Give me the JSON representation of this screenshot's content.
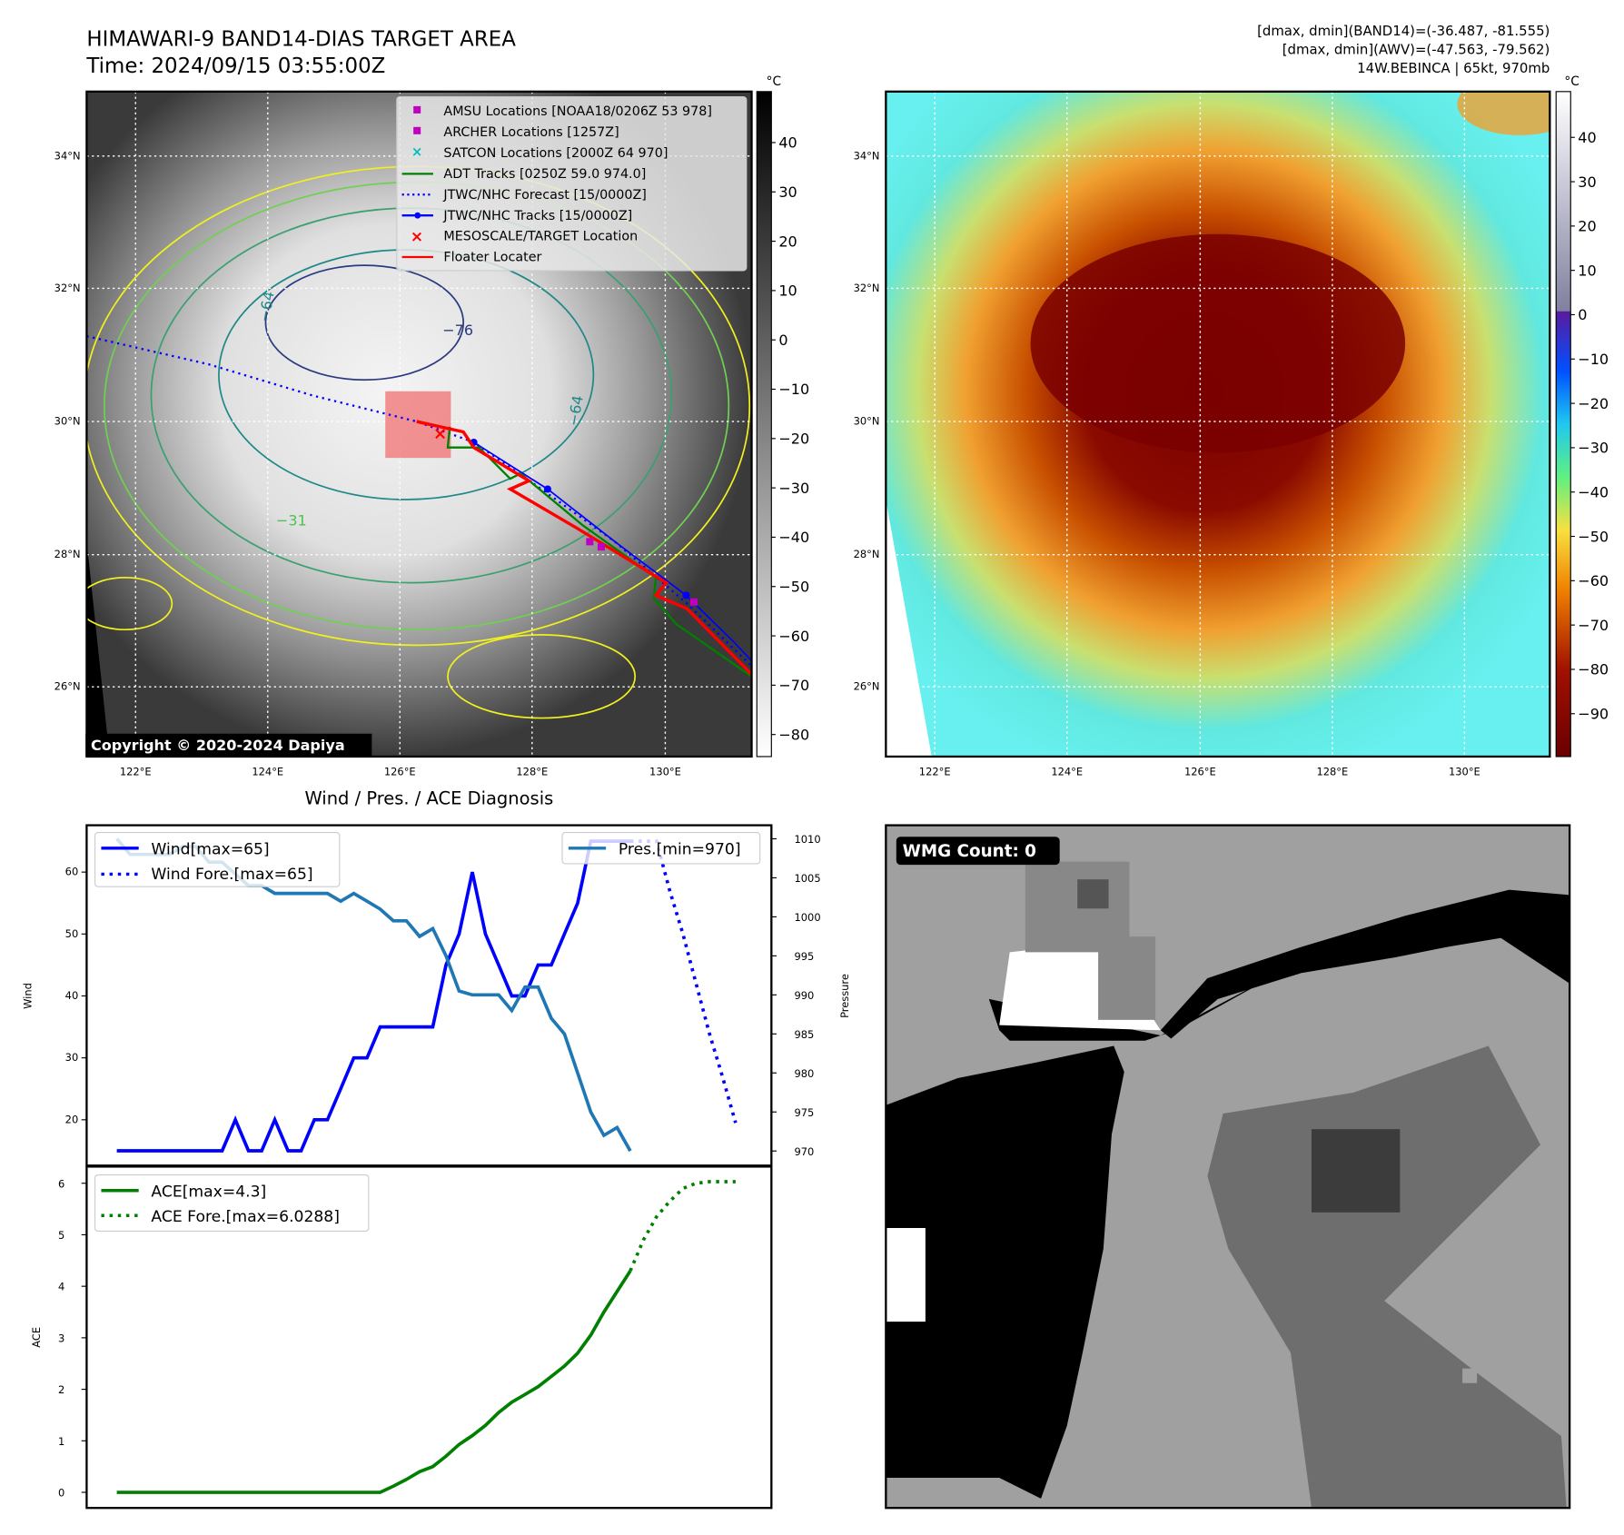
{
  "header": {
    "title": "HIMAWARI-9 BAND14-DIAS TARGET AREA",
    "time": "Time: 2024/09/15 03:55:00Z",
    "info_line1": "[dmax, dmin](BAND14)=(-36.487, -81.555)",
    "info_line2": "[dmax, dmin](AWV)=(-47.563, -79.562)",
    "info_line3": "14W.BEBINCA | 65kt, 970mb"
  },
  "map": {
    "unit": "°C",
    "lat_ticks": [
      "34°N",
      "32°N",
      "30°N",
      "28°N",
      "26°N"
    ],
    "lon_ticks": [
      "122°E",
      "124°E",
      "126°E",
      "128°E",
      "130°E"
    ],
    "colorbar_left_ticks": [
      "40",
      "30",
      "20",
      "10",
      "0",
      "−10",
      "−20",
      "−30",
      "−40",
      "−50",
      "−60",
      "−70",
      "−80"
    ],
    "colorbar_right_ticks": [
      "40",
      "30",
      "20",
      "10",
      "0",
      "−10",
      "−20",
      "−30",
      "−40",
      "−50",
      "−60",
      "−70",
      "−80",
      "−90"
    ],
    "contour_labels": [
      "−76",
      "−64",
      "−64",
      "−31"
    ],
    "copyright": "Copyright © 2020-2024 Dapiya",
    "legend": [
      {
        "label": "AMSU Locations [NOAA18/0206Z 53 978]",
        "color": "#bf00bf"
      },
      {
        "label": "ARCHER Locations [1257Z]",
        "color": "#bf00bf"
      },
      {
        "label": "SATCON Locations [2000Z 64 970]",
        "color": "#00bfbf"
      },
      {
        "label": "ADT Tracks [0250Z 59.0 974.0]",
        "color": "#008000"
      },
      {
        "label": "JTWC/NHC Forecast [15/0000Z]",
        "color": "#0000ff"
      },
      {
        "label": "JTWC/NHC Tracks [15/0000Z]",
        "color": "#0000ff"
      },
      {
        "label": "MESOSCALE/TARGET Location",
        "color": "#ff0000"
      },
      {
        "label": "Floater Locater",
        "color": "#ff0000"
      }
    ]
  },
  "wmg": {
    "label": "WMG Count: 0"
  },
  "chart_data": [
    {
      "type": "line",
      "title": "Wind / Pres. / ACE Diagnosis",
      "ylabel": "Wind",
      "y2label": "Pressure",
      "ylim": [
        12.6,
        67.6
      ],
      "y2lim": [
        968.1,
        1011.7
      ],
      "yticks": [
        "20",
        "30",
        "40",
        "50",
        "60"
      ],
      "y2ticks": [
        "970",
        "975",
        "980",
        "985",
        "990",
        "995",
        "1000",
        "1005",
        "1010"
      ],
      "legend_left": [
        "Wind[max=65]",
        "Wind Fore.[max=65]"
      ],
      "legend_right": [
        "Pres.[min=970]"
      ],
      "series": [
        {
          "name": "Wind",
          "color": "#0000ff",
          "style": "solid",
          "x_start": 0,
          "values": [
            15,
            15,
            15,
            15,
            15,
            15,
            15,
            15,
            15,
            20,
            15,
            15,
            20,
            15,
            15,
            20,
            20,
            25,
            30,
            30,
            35,
            35,
            35,
            35,
            35,
            45,
            50,
            60,
            50,
            45,
            40,
            40,
            45,
            45,
            50,
            55,
            65,
            65,
            65,
            65
          ]
        },
        {
          "name": "Wind Fore.",
          "color": "#0000ff",
          "style": "dotted",
          "x_start": 39,
          "values": [
            65,
            65,
            65,
            57,
            50,
            42,
            34,
            27,
            19.5
          ]
        },
        {
          "name": "Pres.",
          "color": "#1f77b4",
          "style": "solid",
          "axis": "right",
          "x_start": 0,
          "values": [
            1010,
            1008,
            1008,
            1008,
            1008,
            1009,
            1009,
            1007,
            1007,
            1005.5,
            1004,
            1004,
            1003,
            1003,
            1003,
            1003,
            1003,
            1002,
            1003,
            1002,
            1001,
            999.5,
            999.5,
            997.5,
            998.5,
            995,
            990.5,
            990,
            990,
            990,
            988,
            991,
            991,
            987,
            985,
            980,
            975,
            972,
            973,
            970
          ]
        }
      ]
    },
    {
      "type": "line",
      "ylabel": "ACE",
      "ylim": [
        -0.3,
        6.32
      ],
      "yticks": [
        "0",
        "1",
        "2",
        "3",
        "4",
        "5",
        "6"
      ],
      "legend": [
        "ACE[max=4.3]",
        "ACE Fore.[max=6.0288]"
      ],
      "series": [
        {
          "name": "ACE",
          "color": "#008000",
          "style": "solid",
          "x_start": 0,
          "values": [
            0,
            0,
            0,
            0,
            0,
            0,
            0,
            0,
            0,
            0,
            0,
            0,
            0,
            0,
            0,
            0,
            0,
            0,
            0,
            0,
            0,
            0.12,
            0.25,
            0.4,
            0.5,
            0.7,
            0.93,
            1.1,
            1.3,
            1.55,
            1.75,
            1.9,
            2.05,
            2.25,
            2.45,
            2.7,
            3.05,
            3.5,
            3.9,
            4.3
          ]
        },
        {
          "name": "ACE Fore.",
          "color": "#008000",
          "style": "dotted",
          "x_start": 39,
          "values": [
            4.3,
            4.9,
            5.35,
            5.65,
            5.9,
            6.0,
            6.03,
            6.03,
            6.03
          ]
        }
      ]
    }
  ]
}
